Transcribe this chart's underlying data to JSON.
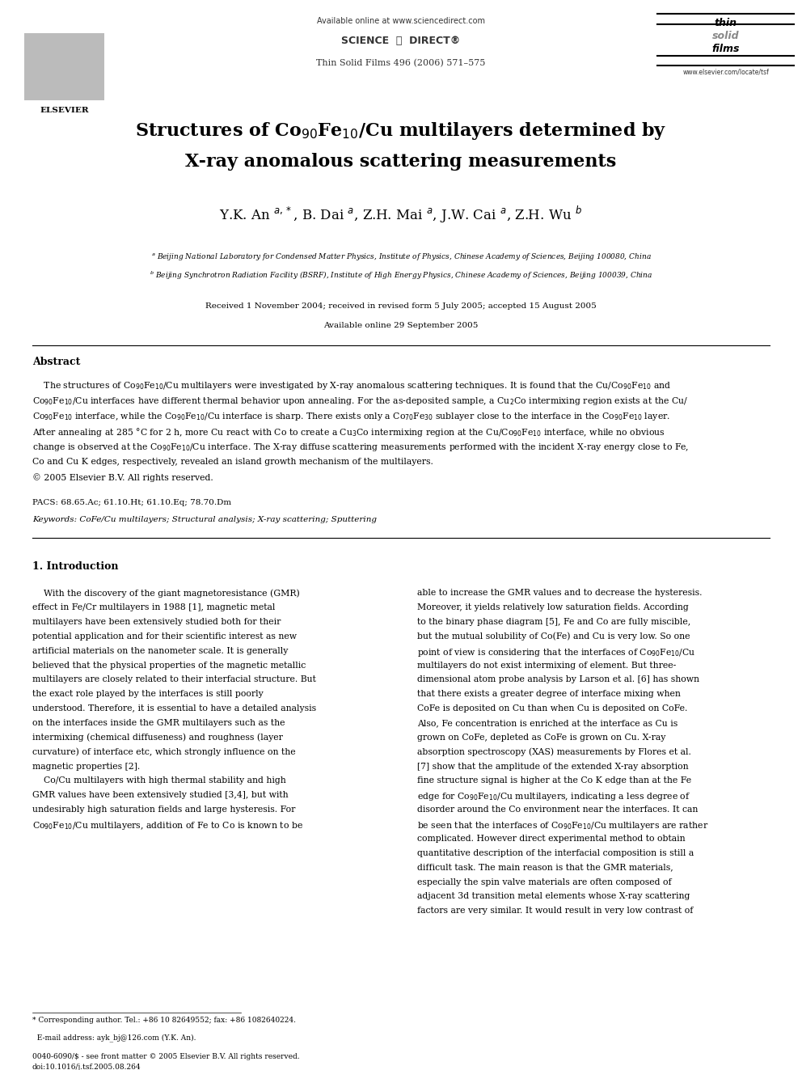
{
  "bg_color": "#ffffff",
  "page_width": 9.92,
  "page_height": 13.23,
  "header_available": "Available online at www.sciencedirect.com",
  "header_sciencedirect": "SCIENCE  ⓓ  DIRECT®",
  "header_journal": "Thin Solid Films 496 (2006) 571–575",
  "header_website": "www.elsevier.com/locate/tsf",
  "header_elsevier": "ELSEVIER",
  "title_line1": "Structures of Co$_{90}$Fe$_{10}$/Cu multilayers determined by",
  "title_line2": "X-ray anomalous scattering measurements",
  "authors": "Y.K. An $^{a,*}$, B. Dai $^{a}$, Z.H. Mai $^{a}$, J.W. Cai $^{a}$, Z.H. Wu $^{b}$",
  "affil_a": "$^a$ Beijing National Laboratory for Condensed Matter Physics, Institute of Physics, Chinese Academy of Sciences, Beijing 100080, China",
  "affil_b": "$^b$ Beijing Synchrotron Radiation Facility (BSRF), Institute of High Energy Physics, Chinese Academy of Sciences, Beijing 100039, China",
  "received": "Received 1 November 2004; received in revised form 5 July 2005; accepted 15 August 2005",
  "available": "Available online 29 September 2005",
  "abstract_title": "Abstract",
  "abstract_lines": [
    "    The structures of Co$_{90}$Fe$_{10}$/Cu multilayers were investigated by X-ray anomalous scattering techniques. It is found that the Cu/Co$_{90}$Fe$_{10}$ and",
    "Co$_{90}$Fe$_{10}$/Cu interfaces have different thermal behavior upon annealing. For the as-deposited sample, a Cu$_2$Co intermixing region exists at the Cu/",
    "Co$_{90}$Fe$_{10}$ interface, while the Co$_{90}$Fe$_{10}$/Cu interface is sharp. There exists only a Co$_{70}$Fe$_{30}$ sublayer close to the interface in the Co$_{90}$Fe$_{10}$ layer.",
    "After annealing at 285 °C for 2 h, more Cu react with Co to create a Cu$_3$Co intermixing region at the Cu/Co$_{90}$Fe$_{10}$ interface, while no obvious",
    "change is observed at the Co$_{90}$Fe$_{10}$/Cu interface. The X-ray diffuse scattering measurements performed with the incident X-ray energy close to Fe,",
    "Co and Cu K edges, respectively, revealed an island growth mechanism of the multilayers.",
    "© 2005 Elsevier B.V. All rights reserved."
  ],
  "pacs": "PACS: 68.65.Ac; 61.10.Ht; 61.10.Eq; 78.70.Dm",
  "keywords": "Keywords: CoFe/Cu multilayers; Structural analysis; X-ray scattering; Sputtering",
  "section1_title": "1. Introduction",
  "col1_lines": [
    "    With the discovery of the giant magnetoresistance (GMR)",
    "effect in Fe/Cr multilayers in 1988 [1], magnetic metal",
    "multilayers have been extensively studied both for their",
    "potential application and for their scientific interest as new",
    "artificial materials on the nanometer scale. It is generally",
    "believed that the physical properties of the magnetic metallic",
    "multilayers are closely related to their interfacial structure. But",
    "the exact role played by the interfaces is still poorly",
    "understood. Therefore, it is essential to have a detailed analysis",
    "on the interfaces inside the GMR multilayers such as the",
    "intermixing (chemical diffuseness) and roughness (layer",
    "curvature) of interface etc, which strongly influence on the",
    "magnetic properties [2].",
    "    Co/Cu multilayers with high thermal stability and high",
    "GMR values have been extensively studied [3,4], but with",
    "undesirably high saturation fields and large hysteresis. For",
    "Co$_{90}$Fe$_{10}$/Cu multilayers, addition of Fe to Co is known to be"
  ],
  "col2_lines": [
    "able to increase the GMR values and to decrease the hysteresis.",
    "Moreover, it yields relatively low saturation fields. According",
    "to the binary phase diagram [5], Fe and Co are fully miscible,",
    "but the mutual solubility of Co(Fe) and Cu is very low. So one",
    "point of view is considering that the interfaces of Co$_{90}$Fe$_{10}$/Cu",
    "multilayers do not exist intermixing of element. But three-",
    "dimensional atom probe analysis by Larson et al. [6] has shown",
    "that there exists a greater degree of interface mixing when",
    "CoFe is deposited on Cu than when Cu is deposited on CoFe.",
    "Also, Fe concentration is enriched at the interface as Cu is",
    "grown on CoFe, depleted as CoFe is grown on Cu. X-ray",
    "absorption spectroscopy (XAS) measurements by Flores et al.",
    "[7] show that the amplitude of the extended X-ray absorption",
    "fine structure signal is higher at the Co K edge than at the Fe",
    "edge for Co$_{90}$Fe$_{10}$/Cu multilayers, indicating a less degree of",
    "disorder around the Co environment near the interfaces. It can",
    "be seen that the interfaces of Co$_{90}$Fe$_{10}$/Cu multilayers are rather",
    "complicated. However direct experimental method to obtain",
    "quantitative description of the interfacial composition is still a",
    "difficult task. The main reason is that the GMR materials,",
    "especially the spin valve materials are often composed of",
    "adjacent 3d transition metal elements whose X-ray scattering",
    "factors are very similar. It would result in very low contrast of"
  ],
  "footnote1": "* Corresponding author. Tel.: +86 10 82649552; fax: +86 1082640224.",
  "footnote2": "  E-mail address: ayk_bj@126.com (Y.K. An).",
  "footer_issn": "0040-6090/$ - see front matter © 2005 Elsevier B.V. All rights reserved.",
  "footer_doi": "doi:10.1016/j.tsf.2005.08.264"
}
